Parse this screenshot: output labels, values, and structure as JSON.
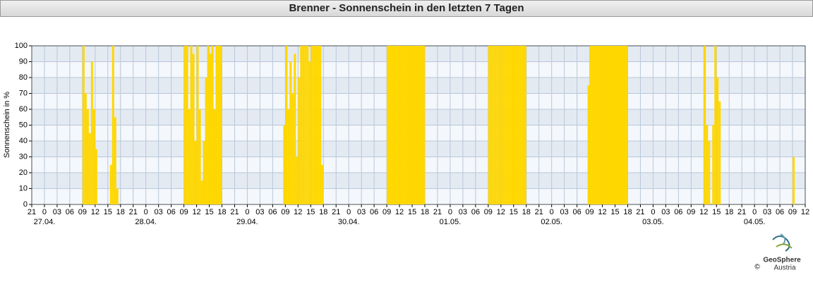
{
  "chart_data": {
    "type": "bar",
    "title": "Brenner - Sonnenschein in den letzten 7 Tagen",
    "ylabel": "Sonnenschein in %",
    "color": "#ffd700",
    "grid": true,
    "ylim": [
      0,
      100
    ],
    "yticks": [
      0,
      10,
      20,
      30,
      40,
      50,
      60,
      70,
      80,
      90,
      100
    ],
    "xlim": [
      -3,
      180
    ],
    "xticks": [
      {
        "value": -3,
        "label": "21"
      },
      0,
      {
        "value": 3,
        "label": "03"
      },
      {
        "value": 6,
        "label": "06"
      },
      {
        "value": 9,
        "label": "09"
      },
      12,
      15,
      18,
      21,
      {
        "value": 24,
        "label": "0"
      },
      {
        "value": 27,
        "label": "03"
      },
      {
        "value": 30,
        "label": "06"
      },
      {
        "value": 33,
        "label": "09"
      },
      {
        "value": 36,
        "label": "12"
      },
      {
        "value": 39,
        "label": "15"
      },
      {
        "value": 42,
        "label": "18"
      },
      {
        "value": 45,
        "label": "21"
      },
      {
        "value": 48,
        "label": "0"
      },
      {
        "value": 51,
        "label": "03"
      },
      {
        "value": 54,
        "label": "06"
      },
      {
        "value": 57,
        "label": "09"
      },
      {
        "value": 60,
        "label": "12"
      },
      {
        "value": 63,
        "label": "15"
      },
      {
        "value": 66,
        "label": "18"
      },
      {
        "value": 69,
        "label": "21"
      },
      {
        "value": 72,
        "label": "0"
      },
      {
        "value": 75,
        "label": "03"
      },
      {
        "value": 78,
        "label": "06"
      },
      {
        "value": 81,
        "label": "09"
      },
      {
        "value": 84,
        "label": "12"
      },
      {
        "value": 87,
        "label": "15"
      },
      {
        "value": 90,
        "label": "18"
      },
      {
        "value": 93,
        "label": "21"
      },
      {
        "value": 96,
        "label": "0"
      },
      {
        "value": 99,
        "label": "03"
      },
      {
        "value": 102,
        "label": "06"
      },
      {
        "value": 105,
        "label": "09"
      },
      {
        "value": 108,
        "label": "12"
      },
      {
        "value": 111,
        "label": "15"
      },
      {
        "value": 114,
        "label": "18"
      },
      {
        "value": 117,
        "label": "21"
      },
      {
        "value": 120,
        "label": "0"
      },
      {
        "value": 123,
        "label": "03"
      },
      {
        "value": 126,
        "label": "06"
      },
      {
        "value": 129,
        "label": "09"
      },
      {
        "value": 132,
        "label": "12"
      },
      {
        "value": 135,
        "label": "15"
      },
      {
        "value": 138,
        "label": "18"
      },
      {
        "value": 141,
        "label": "21"
      },
      {
        "value": 144,
        "label": "0"
      },
      {
        "value": 147,
        "label": "03"
      },
      {
        "value": 150,
        "label": "06"
      },
      {
        "value": 153,
        "label": "09"
      },
      {
        "value": 156,
        "label": "12"
      },
      {
        "value": 159,
        "label": "15"
      },
      {
        "value": 162,
        "label": "18"
      },
      {
        "value": 165,
        "label": "21"
      },
      {
        "value": 168,
        "label": "0"
      },
      {
        "value": 171,
        "label": "03"
      },
      {
        "value": 174,
        "label": "06"
      },
      {
        "value": 177,
        "label": "09"
      },
      {
        "value": 180,
        "label": "12"
      }
    ],
    "date_ticks": [
      {
        "value": 0,
        "label": "27.04."
      },
      {
        "value": 24,
        "label": "28.04."
      },
      {
        "value": 48,
        "label": "29.04."
      },
      {
        "value": 72,
        "label": "30.04."
      },
      {
        "value": 96,
        "label": "01.05."
      },
      {
        "value": 120,
        "label": "02.05."
      },
      {
        "value": 144,
        "label": "03.05."
      },
      {
        "value": 168,
        "label": "04.05."
      }
    ],
    "x": [
      8.5,
      9,
      9.5,
      10,
      10.5,
      11,
      11.5,
      12,
      12.5,
      13,
      13.5,
      14,
      14.5,
      15,
      15.5,
      16,
      16.5,
      17,
      17.5,
      18,
      32.5,
      33,
      33.5,
      34,
      34.5,
      35,
      35.5,
      36,
      36.5,
      37,
      37.5,
      38,
      38.5,
      39,
      39.5,
      40,
      40.5,
      41,
      41.5,
      42,
      56.5,
      57,
      57.5,
      58,
      58.5,
      59,
      59.5,
      60,
      60.5,
      61,
      61.5,
      62,
      62.5,
      63,
      63.5,
      64,
      64.5,
      65,
      65.5,
      66,
      80.5,
      81,
      81.5,
      82,
      82.5,
      83,
      83.5,
      84,
      84.5,
      85,
      85.5,
      86,
      86.5,
      87,
      87.5,
      88,
      88.5,
      89,
      89.5,
      90,
      104.5,
      105,
      105.5,
      106,
      106.5,
      107,
      107.5,
      108,
      108.5,
      109,
      109.5,
      110,
      110.5,
      111,
      111.5,
      112,
      112.5,
      113,
      113.5,
      114,
      128.5,
      129,
      129.5,
      130,
      130.5,
      131,
      131.5,
      132,
      132.5,
      133,
      133.5,
      134,
      134.5,
      135,
      135.5,
      136,
      136.5,
      137,
      137.5,
      138,
      152.5,
      153,
      153.5,
      154,
      154.5,
      155,
      155.5,
      156,
      156.5,
      157,
      157.5,
      158,
      158.5,
      159,
      159.5,
      160,
      160.5,
      161,
      161.5,
      162,
      176.5,
      177,
      177.5,
      178,
      178.5,
      179,
      179.5
    ],
    "bar_width": 0.5,
    "values": [
      0,
      100,
      70,
      60,
      45,
      90,
      60,
      35,
      0,
      0,
      0,
      0,
      0,
      0,
      25,
      100,
      55,
      10,
      0,
      0,
      0,
      100,
      100,
      60,
      100,
      95,
      40,
      100,
      60,
      15,
      40,
      80,
      100,
      95,
      100,
      60,
      100,
      100,
      100,
      0,
      50,
      100,
      60,
      90,
      70,
      95,
      30,
      80,
      100,
      100,
      100,
      100,
      90,
      100,
      100,
      100,
      100,
      100,
      25,
      0,
      0,
      100,
      100,
      100,
      100,
      100,
      100,
      100,
      100,
      100,
      100,
      100,
      100,
      100,
      100,
      100,
      100,
      100,
      100,
      0,
      0,
      100,
      100,
      100,
      100,
      100,
      100,
      100,
      100,
      100,
      100,
      100,
      100,
      100,
      100,
      100,
      100,
      100,
      100,
      0,
      75,
      100,
      100,
      100,
      100,
      100,
      100,
      100,
      100,
      100,
      100,
      100,
      100,
      100,
      100,
      100,
      100,
      100,
      100,
      0,
      0,
      0,
      0,
      0,
      0,
      0,
      0,
      100,
      50,
      40,
      0,
      50,
      100,
      80,
      65,
      0,
      0,
      0,
      0,
      0,
      0,
      30,
      0,
      0,
      0,
      0,
      0
    ]
  },
  "logo": {
    "name": "GeoSphere",
    "sub": "Austria",
    "copyright": "©"
  }
}
